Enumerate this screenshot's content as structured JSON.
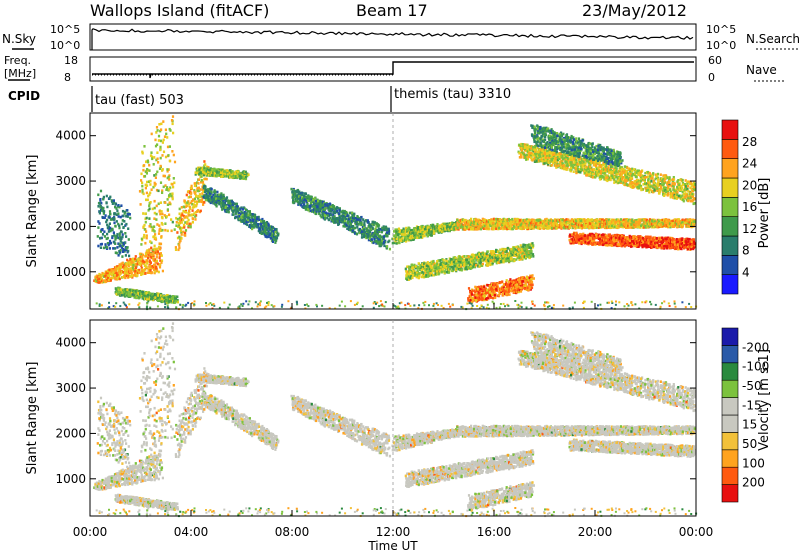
{
  "header": {
    "station": "Wallops Island (fitACF)",
    "beam": "Beam 17",
    "date": "23/May/2012"
  },
  "nsky_panel": {
    "left_label": "N.Sky",
    "left_ticks": [
      "10^5",
      "10^0"
    ],
    "right_ticks": [
      "10^5",
      "10^0"
    ],
    "right_label": "N.Search"
  },
  "freq_panel": {
    "left_label_1": "Freq.",
    "left_label_2": "[MHz]",
    "left_ticks": [
      "18",
      "8"
    ],
    "right_ticks": [
      "60",
      "0"
    ],
    "right_label": "Nave"
  },
  "cpid_panel": {
    "label": "CPID",
    "segments": [
      {
        "text": "tau (fast) 503",
        "start_hour": 0
      },
      {
        "text": "themis (tau) 3310",
        "start_hour": 12
      }
    ]
  },
  "colors": {
    "power_scale": [
      "#1a1aff",
      "#1f4fa8",
      "#2a7d6c",
      "#3f9a4b",
      "#7cc23d",
      "#e8d020",
      "#ffa31f",
      "#ff5a10",
      "#e81010"
    ],
    "velocity_scale": [
      "#e81010",
      "#ff5a10",
      "#ffa31f",
      "#f2c13a",
      "#c8c8c0",
      "#c8c8c0",
      "#7cc23d",
      "#2a8a3e",
      "#2a5aa8",
      "#1a1aaa"
    ]
  },
  "chart_data": [
    {
      "type": "heatmap",
      "name": "power",
      "ylabel": "Slant Range [km]",
      "yticks": [
        1000,
        2000,
        3000,
        4000
      ],
      "ylim": [
        180,
        4500
      ],
      "xlim": [
        0,
        24
      ],
      "colorbar": {
        "label": "Power [dB]",
        "tick_labels": [
          "4",
          "8",
          "12",
          "16",
          "20",
          "24",
          "28"
        ],
        "range": [
          0,
          32
        ]
      },
      "echo_regions": [
        {
          "t": [
            0.3,
            1.5
          ],
          "r0": [
            1800,
            2600
          ],
          "r1": [
            1500,
            2200
          ],
          "level": 9
        },
        {
          "t": [
            0.2,
            2.8
          ],
          "r0": [
            800,
            900
          ],
          "r1": [
            1150,
            1550
          ],
          "level": 22
        },
        {
          "t": [
            2.0,
            3.3
          ],
          "r0": [
            2000,
            3400
          ],
          "r1": [
            2400,
            4200
          ],
          "level": 19
        },
        {
          "t": [
            1.0,
            3.4
          ],
          "r0": [
            550,
            650
          ],
          "r1": [
            350,
            450
          ],
          "level": 15
        },
        {
          "t": [
            3.4,
            4.6
          ],
          "r0": [
            1600,
            2100
          ],
          "r1": [
            2800,
            3400
          ],
          "level": 21
        },
        {
          "t": [
            4.2,
            6.2
          ],
          "r0": [
            3200,
            3300
          ],
          "r1": [
            3100,
            3200
          ],
          "level": 16
        },
        {
          "t": [
            4.5,
            7.4
          ],
          "r0": [
            2700,
            2900
          ],
          "r1": [
            1700,
            1900
          ],
          "level": 10
        },
        {
          "t": [
            8.0,
            11.8
          ],
          "r0": [
            2600,
            2800
          ],
          "r1": [
            1600,
            1900
          ],
          "level": 10
        },
        {
          "t": [
            12.0,
            14.5
          ],
          "r0": [
            1700,
            1900
          ],
          "r1": [
            2000,
            2100
          ],
          "level": 16
        },
        {
          "t": [
            12.5,
            17.5
          ],
          "r0": [
            900,
            1100
          ],
          "r1": [
            1400,
            1600
          ],
          "level": 17
        },
        {
          "t": [
            15.0,
            17.5
          ],
          "r0": [
            400,
            600
          ],
          "r1": [
            700,
            900
          ],
          "level": 25
        },
        {
          "t": [
            14.5,
            24.0
          ],
          "r0": [
            2000,
            2150
          ],
          "r1": [
            2050,
            2150
          ],
          "level": 21
        },
        {
          "t": [
            19.0,
            24.0
          ],
          "r0": [
            1700,
            1850
          ],
          "r1": [
            1550,
            1700
          ],
          "level": 27
        },
        {
          "t": [
            17.0,
            24.0
          ],
          "r0": [
            3600,
            3800
          ],
          "r1": [
            2600,
            2900
          ],
          "level": 19
        },
        {
          "t": [
            17.5,
            21.0
          ],
          "r0": [
            3900,
            4200
          ],
          "r1": [
            3400,
            3600
          ],
          "level": 11
        }
      ]
    },
    {
      "type": "heatmap",
      "name": "velocity",
      "ylabel": "Slant Range [km]",
      "xlabel": "Time UT",
      "yticks": [
        1000,
        2000,
        3000,
        4000
      ],
      "xtick_labels": [
        "00:00",
        "04:00",
        "08:00",
        "12:00",
        "16:00",
        "20:00",
        "00:00"
      ],
      "xticks_hours": [
        0,
        4,
        8,
        12,
        16,
        20,
        24
      ],
      "ylim": [
        180,
        4500
      ],
      "xlim": [
        0,
        24
      ],
      "colorbar": {
        "label": "Velocity [m s-1]",
        "tick_labels": [
          "200",
          "100",
          "50",
          "15",
          "-15",
          "-50",
          "-100",
          "-200"
        ],
        "range": [
          -250,
          250
        ]
      }
    }
  ]
}
